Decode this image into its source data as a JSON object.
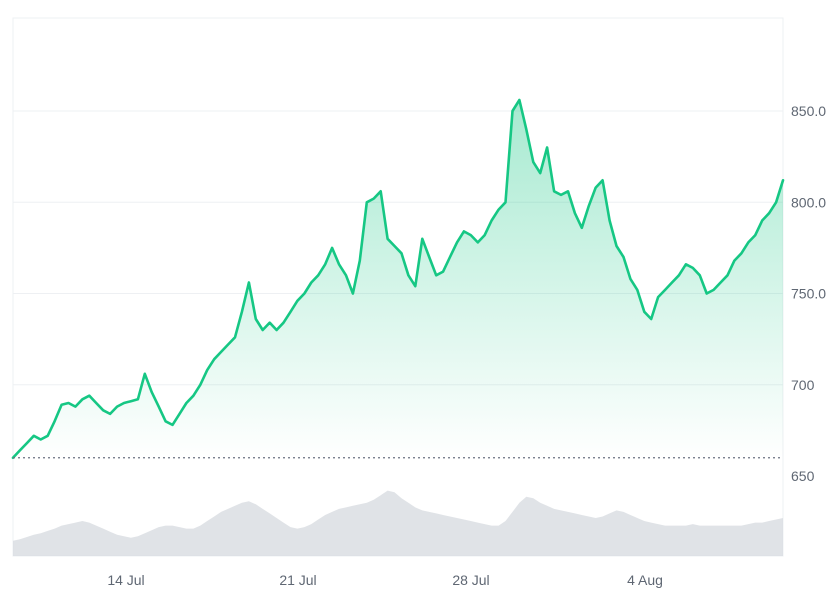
{
  "chart_data": {
    "type": "area",
    "title": "",
    "xlabel": "",
    "ylabel": "",
    "ylim": [
      600,
      900
    ],
    "x_ticks": [
      "14 Jul",
      "21 Jul",
      "28 Jul",
      "4 Aug"
    ],
    "y_ticks": [
      "650",
      "700",
      "750.0",
      "800.0",
      "850.0"
    ],
    "reference_line": 660,
    "grid": "horizontal",
    "colors": {
      "line": "#16c784",
      "fill_top": "#16c784",
      "reference": "#6b7280",
      "grid": "#eef0f3",
      "volume": "#d5d9df"
    },
    "series": [
      {
        "values": [
          660,
          664,
          668,
          672,
          670,
          672,
          680,
          689,
          690,
          688,
          692,
          694,
          690,
          686,
          684,
          688,
          690,
          691,
          692,
          706,
          696,
          688,
          680,
          678,
          684,
          690,
          694,
          700,
          708,
          714,
          718,
          722,
          726,
          740,
          756,
          736,
          730,
          734,
          730,
          734,
          740,
          746,
          750,
          756,
          760,
          766,
          775,
          766,
          760,
          750,
          768,
          800,
          802,
          806,
          780,
          776,
          772,
          760,
          754,
          780,
          770,
          760,
          762,
          770,
          778,
          784,
          782,
          778,
          782,
          790,
          796,
          800,
          850,
          856,
          840,
          822,
          816,
          830,
          806,
          804,
          806,
          794,
          786,
          798,
          808,
          812,
          790,
          776,
          770,
          758,
          752,
          740,
          736,
          748,
          752,
          756,
          760,
          766,
          764,
          760,
          750,
          752,
          756,
          760,
          768,
          772,
          778,
          782,
          790,
          794,
          800,
          812
        ]
      }
    ],
    "volume_series": [
      0.2,
      0.22,
      0.25,
      0.28,
      0.3,
      0.33,
      0.36,
      0.4,
      0.42,
      0.44,
      0.46,
      0.44,
      0.4,
      0.36,
      0.32,
      0.28,
      0.26,
      0.24,
      0.26,
      0.3,
      0.34,
      0.38,
      0.4,
      0.4,
      0.38,
      0.36,
      0.36,
      0.4,
      0.46,
      0.52,
      0.58,
      0.62,
      0.66,
      0.7,
      0.72,
      0.68,
      0.62,
      0.56,
      0.5,
      0.44,
      0.38,
      0.36,
      0.38,
      0.42,
      0.48,
      0.54,
      0.58,
      0.62,
      0.64,
      0.66,
      0.68,
      0.7,
      0.74,
      0.8,
      0.86,
      0.84,
      0.76,
      0.7,
      0.64,
      0.6,
      0.58,
      0.56,
      0.54,
      0.52,
      0.5,
      0.48,
      0.46,
      0.44,
      0.42,
      0.4,
      0.4,
      0.46,
      0.58,
      0.7,
      0.78,
      0.76,
      0.7,
      0.66,
      0.62,
      0.6,
      0.58,
      0.56,
      0.54,
      0.52,
      0.5,
      0.52,
      0.56,
      0.6,
      0.58,
      0.54,
      0.5,
      0.46,
      0.44,
      0.42,
      0.4,
      0.4,
      0.4,
      0.4,
      0.42,
      0.4,
      0.4,
      0.4,
      0.4,
      0.4,
      0.4,
      0.4,
      0.42,
      0.44,
      0.44,
      0.46,
      0.48,
      0.5
    ]
  }
}
